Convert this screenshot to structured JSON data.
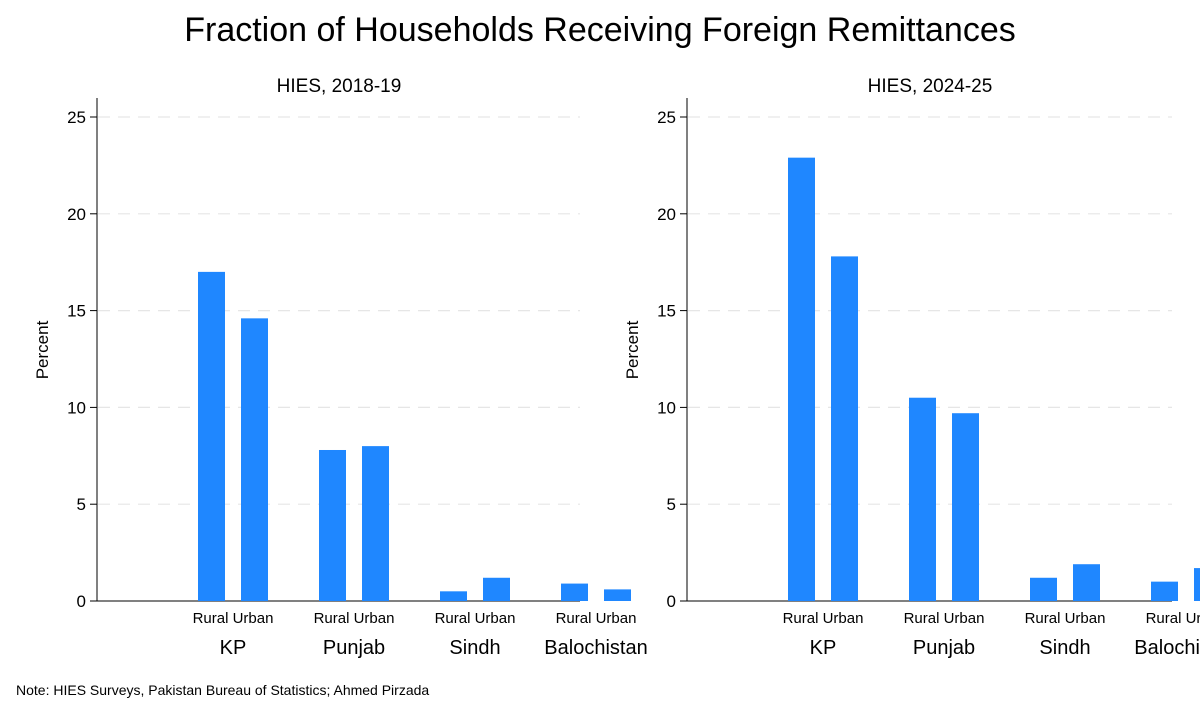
{
  "title": "Fraction of Households Receiving Foreign Remittances",
  "note": "Note: HIES Surveys, Pakistan Bureau of Statistics; Ahmed Pirzada",
  "colors": {
    "bar": "#1f87ff",
    "grid": "#e6e6e6",
    "axis": "#000000"
  },
  "chart_data": [
    {
      "type": "bar",
      "title": "HIES, 2018-19",
      "ylabel": "Percent",
      "ylim": [
        0,
        25
      ],
      "yticks": [
        0,
        5,
        10,
        15,
        20,
        25
      ],
      "grid": true,
      "groups": [
        "KP",
        "Punjab",
        "Sindh",
        "Balochistan"
      ],
      "subcategories": [
        "Rural",
        "Urban"
      ],
      "values": [
        [
          17.0,
          14.6
        ],
        [
          7.8,
          8.0
        ],
        [
          0.5,
          1.2
        ],
        [
          0.9,
          0.6
        ]
      ]
    },
    {
      "type": "bar",
      "title": "HIES, 2024-25",
      "ylabel": "Percent",
      "ylim": [
        0,
        25
      ],
      "yticks": [
        0,
        5,
        10,
        15,
        20,
        25
      ],
      "grid": true,
      "groups": [
        "KP",
        "Punjab",
        "Sindh",
        "Balochistan"
      ],
      "subcategories": [
        "Rural",
        "Urban"
      ],
      "values": [
        [
          22.9,
          17.8
        ],
        [
          10.5,
          9.7
        ],
        [
          1.2,
          1.9
        ],
        [
          1.0,
          1.7
        ]
      ]
    }
  ]
}
